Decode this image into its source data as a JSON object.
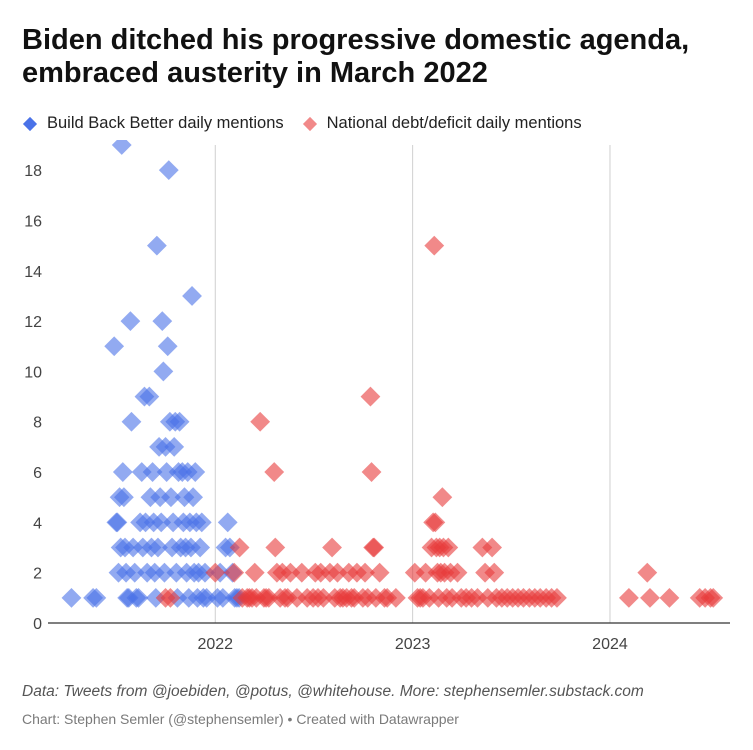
{
  "header": {
    "title": "Biden ditched his progressive domestic agenda, embraced austerity in March 2022"
  },
  "legend": {
    "items": [
      {
        "label": "Build Back Better daily mentions",
        "color": "#4a72e8"
      },
      {
        "label": "National debt/deficit daily mentions",
        "color": "#e83a3a"
      }
    ]
  },
  "footer": {
    "source": "Data: Tweets from @joebiden, @potus, @whitehouse. More: stephensemler.substack.com",
    "credit": "Chart: Stephen Semler (@stephensemler) • Created with Datawrapper"
  },
  "chart_data": {
    "type": "scatter",
    "title": "Biden ditched his progressive domestic agenda, embraced austerity in March 2022",
    "xlabel": "",
    "ylabel": "",
    "x_range": [
      "2021-03-05",
      "2024-08-10"
    ],
    "ylim": [
      0,
      19
    ],
    "y_ticks": [
      0,
      2,
      4,
      6,
      8,
      10,
      12,
      14,
      16,
      18
    ],
    "x_ticks": [
      {
        "date": "2022-01-01",
        "label": "2022"
      },
      {
        "date": "2023-01-01",
        "label": "2023"
      },
      {
        "date": "2024-01-01",
        "label": "2024"
      }
    ],
    "grid": "vertical lines at year boundaries",
    "legend_position": "top-left",
    "series": [
      {
        "name": "Build Back Better daily mentions",
        "color": "#4a72e8",
        "points": [
          [
            "2021-04-10",
            1
          ],
          [
            "2021-05-20",
            1
          ],
          [
            "2021-05-26",
            1
          ],
          [
            "2021-06-28",
            11
          ],
          [
            "2021-07-02",
            4
          ],
          [
            "2021-07-04",
            4
          ],
          [
            "2021-07-06",
            2
          ],
          [
            "2021-07-08",
            5
          ],
          [
            "2021-07-10",
            3
          ],
          [
            "2021-07-12",
            19
          ],
          [
            "2021-07-14",
            6
          ],
          [
            "2021-07-16",
            5
          ],
          [
            "2021-07-18",
            3
          ],
          [
            "2021-07-20",
            2
          ],
          [
            "2021-07-22",
            1
          ],
          [
            "2021-07-25",
            1
          ],
          [
            "2021-07-28",
            12
          ],
          [
            "2021-07-30",
            8
          ],
          [
            "2021-08-02",
            3
          ],
          [
            "2021-08-05",
            2
          ],
          [
            "2021-08-08",
            1
          ],
          [
            "2021-08-12",
            1
          ],
          [
            "2021-08-15",
            4
          ],
          [
            "2021-08-18",
            6
          ],
          [
            "2021-08-20",
            3
          ],
          [
            "2021-08-23",
            9
          ],
          [
            "2021-08-25",
            4
          ],
          [
            "2021-08-28",
            2
          ],
          [
            "2021-09-01",
            9
          ],
          [
            "2021-09-03",
            5
          ],
          [
            "2021-09-05",
            3
          ],
          [
            "2021-09-07",
            6
          ],
          [
            "2021-09-09",
            4
          ],
          [
            "2021-09-11",
            2
          ],
          [
            "2021-09-13",
            1
          ],
          [
            "2021-09-15",
            15
          ],
          [
            "2021-09-17",
            3
          ],
          [
            "2021-09-19",
            7
          ],
          [
            "2021-09-21",
            5
          ],
          [
            "2021-09-23",
            4
          ],
          [
            "2021-09-25",
            12
          ],
          [
            "2021-09-27",
            10
          ],
          [
            "2021-09-29",
            2
          ],
          [
            "2021-10-01",
            7
          ],
          [
            "2021-10-03",
            6
          ],
          [
            "2021-10-05",
            11
          ],
          [
            "2021-10-07",
            18
          ],
          [
            "2021-10-09",
            8
          ],
          [
            "2021-10-11",
            5
          ],
          [
            "2021-10-13",
            3
          ],
          [
            "2021-10-15",
            4
          ],
          [
            "2021-10-17",
            7
          ],
          [
            "2021-10-19",
            8
          ],
          [
            "2021-10-21",
            2
          ],
          [
            "2021-10-23",
            1
          ],
          [
            "2021-10-25",
            6
          ],
          [
            "2021-10-27",
            8
          ],
          [
            "2021-10-29",
            3
          ],
          [
            "2021-11-01",
            6
          ],
          [
            "2021-11-03",
            4
          ],
          [
            "2021-11-05",
            5
          ],
          [
            "2021-11-07",
            3
          ],
          [
            "2021-11-09",
            2
          ],
          [
            "2021-11-11",
            6
          ],
          [
            "2021-11-13",
            1
          ],
          [
            "2021-11-15",
            4
          ],
          [
            "2021-11-17",
            3
          ],
          [
            "2021-11-19",
            13
          ],
          [
            "2021-11-21",
            5
          ],
          [
            "2021-11-23",
            2
          ],
          [
            "2021-11-25",
            6
          ],
          [
            "2021-11-27",
            4
          ],
          [
            "2021-11-29",
            1
          ],
          [
            "2021-12-01",
            2
          ],
          [
            "2021-12-04",
            3
          ],
          [
            "2021-12-07",
            4
          ],
          [
            "2021-12-10",
            1
          ],
          [
            "2021-12-13",
            2
          ],
          [
            "2021-12-16",
            1
          ],
          [
            "2022-01-05",
            1
          ],
          [
            "2022-01-10",
            2
          ],
          [
            "2022-01-15",
            1
          ],
          [
            "2022-01-20",
            3
          ],
          [
            "2022-01-24",
            4
          ],
          [
            "2022-01-28",
            3
          ],
          [
            "2022-02-02",
            2
          ],
          [
            "2022-02-06",
            1
          ],
          [
            "2022-02-10",
            1
          ],
          [
            "2022-02-14",
            1
          ]
        ]
      },
      {
        "name": "National debt/deficit daily mentions",
        "color": "#e83a3a",
        "points": [
          [
            "2021-10-01",
            1
          ],
          [
            "2021-10-10",
            1
          ],
          [
            "2022-01-01",
            2
          ],
          [
            "2022-02-05",
            2
          ],
          [
            "2022-02-15",
            3
          ],
          [
            "2022-02-20",
            1
          ],
          [
            "2022-03-01",
            1
          ],
          [
            "2022-03-05",
            1
          ],
          [
            "2022-03-10",
            1
          ],
          [
            "2022-03-15",
            2
          ],
          [
            "2022-03-18",
            1
          ],
          [
            "2022-03-25",
            8
          ],
          [
            "2022-04-01",
            1
          ],
          [
            "2022-04-05",
            1
          ],
          [
            "2022-04-10",
            1
          ],
          [
            "2022-04-20",
            6
          ],
          [
            "2022-04-22",
            3
          ],
          [
            "2022-04-25",
            2
          ],
          [
            "2022-05-01",
            1
          ],
          [
            "2022-05-05",
            2
          ],
          [
            "2022-05-10",
            1
          ],
          [
            "2022-05-15",
            1
          ],
          [
            "2022-05-20",
            2
          ],
          [
            "2022-06-01",
            1
          ],
          [
            "2022-06-10",
            2
          ],
          [
            "2022-06-20",
            1
          ],
          [
            "2022-07-01",
            1
          ],
          [
            "2022-07-05",
            2
          ],
          [
            "2022-07-10",
            1
          ],
          [
            "2022-07-15",
            2
          ],
          [
            "2022-07-20",
            1
          ],
          [
            "2022-08-01",
            2
          ],
          [
            "2022-08-05",
            3
          ],
          [
            "2022-08-10",
            1
          ],
          [
            "2022-08-15",
            2
          ],
          [
            "2022-08-20",
            1
          ],
          [
            "2022-08-25",
            1
          ],
          [
            "2022-09-01",
            1
          ],
          [
            "2022-09-05",
            2
          ],
          [
            "2022-09-10",
            1
          ],
          [
            "2022-09-15",
            1
          ],
          [
            "2022-09-20",
            2
          ],
          [
            "2022-10-01",
            1
          ],
          [
            "2022-10-05",
            2
          ],
          [
            "2022-10-10",
            1
          ],
          [
            "2022-10-15",
            9
          ],
          [
            "2022-10-17",
            6
          ],
          [
            "2022-10-20",
            3
          ],
          [
            "2022-10-22",
            3
          ],
          [
            "2022-10-25",
            1
          ],
          [
            "2022-11-01",
            2
          ],
          [
            "2022-11-10",
            1
          ],
          [
            "2022-11-15",
            1
          ],
          [
            "2022-12-01",
            1
          ],
          [
            "2023-01-05",
            2
          ],
          [
            "2023-01-10",
            1
          ],
          [
            "2023-01-15",
            1
          ],
          [
            "2023-01-20",
            1
          ],
          [
            "2023-01-25",
            2
          ],
          [
            "2023-02-01",
            1
          ],
          [
            "2023-02-05",
            3
          ],
          [
            "2023-02-08",
            4
          ],
          [
            "2023-02-10",
            15
          ],
          [
            "2023-02-12",
            4
          ],
          [
            "2023-02-14",
            3
          ],
          [
            "2023-02-16",
            2
          ],
          [
            "2023-02-18",
            1
          ],
          [
            "2023-02-20",
            3
          ],
          [
            "2023-02-22",
            2
          ],
          [
            "2023-02-25",
            5
          ],
          [
            "2023-02-27",
            3
          ],
          [
            "2023-03-01",
            2
          ],
          [
            "2023-03-05",
            1
          ],
          [
            "2023-03-08",
            3
          ],
          [
            "2023-03-12",
            2
          ],
          [
            "2023-03-15",
            1
          ],
          [
            "2023-03-25",
            2
          ],
          [
            "2023-04-01",
            1
          ],
          [
            "2023-04-10",
            1
          ],
          [
            "2023-04-20",
            1
          ],
          [
            "2023-05-01",
            1
          ],
          [
            "2023-05-10",
            3
          ],
          [
            "2023-05-15",
            2
          ],
          [
            "2023-05-20",
            1
          ],
          [
            "2023-05-28",
            3
          ],
          [
            "2023-06-01",
            2
          ],
          [
            "2023-06-05",
            1
          ],
          [
            "2023-06-15",
            1
          ],
          [
            "2023-06-25",
            1
          ],
          [
            "2023-07-05",
            1
          ],
          [
            "2023-07-15",
            1
          ],
          [
            "2023-07-25",
            1
          ],
          [
            "2023-08-05",
            1
          ],
          [
            "2023-08-15",
            1
          ],
          [
            "2023-08-25",
            1
          ],
          [
            "2023-09-05",
            1
          ],
          [
            "2023-09-15",
            1
          ],
          [
            "2023-09-25",
            1
          ],
          [
            "2024-02-05",
            1
          ],
          [
            "2024-03-10",
            2
          ],
          [
            "2024-03-15",
            1
          ],
          [
            "2024-04-20",
            1
          ],
          [
            "2024-06-15",
            1
          ],
          [
            "2024-06-25",
            1
          ],
          [
            "2024-07-05",
            1
          ],
          [
            "2024-07-10",
            1
          ]
        ]
      }
    ]
  }
}
